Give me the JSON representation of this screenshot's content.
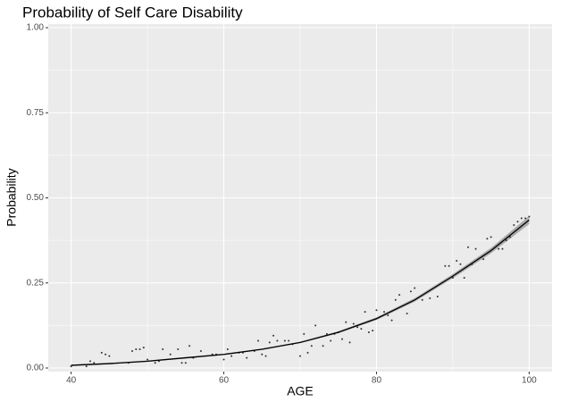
{
  "chart_data": {
    "type": "scatter",
    "title": "Probability of Self Care Disability",
    "xlabel": "AGE",
    "ylabel": "Probability",
    "xlim": [
      37,
      103
    ],
    "ylim": [
      0,
      1
    ],
    "xticks": [
      40,
      60,
      80,
      100
    ],
    "yticks": [
      {
        "value": 0,
        "label": "0.00"
      },
      {
        "value": 0.25,
        "label": "0.25"
      },
      {
        "value": 0.5,
        "label": "0.50"
      },
      {
        "value": 0.75,
        "label": "0.75"
      },
      {
        "value": 1,
        "label": "1.00"
      }
    ],
    "x_minor_grid": [
      50,
      70,
      90
    ],
    "y_minor_grid": [
      0.125,
      0.375,
      0.625,
      0.875
    ],
    "grid": true,
    "background": "#ebebeb",
    "points": {
      "color": "#333333",
      "x": [
        40,
        42,
        42.5,
        43,
        44,
        44.5,
        45,
        47.5,
        48,
        48.5,
        49,
        49.5,
        50,
        51,
        51.5,
        52,
        53,
        54,
        54.5,
        55,
        55.5,
        56,
        57,
        58.5,
        59,
        60,
        60.5,
        61,
        62,
        62.5,
        63,
        64,
        64.5,
        65,
        65.5,
        66,
        66.5,
        67,
        68,
        68.5,
        69,
        70,
        70.5,
        71,
        71.5,
        72,
        73,
        73.5,
        74,
        74.5,
        75,
        75.5,
        76,
        76.5,
        77,
        77.5,
        78,
        78.5,
        79,
        79.5,
        80,
        81,
        81.5,
        82,
        82.5,
        83,
        84,
        84.5,
        85,
        86,
        87,
        88,
        89,
        89.5,
        90,
        90.5,
        91,
        91.5,
        92,
        92.5,
        93,
        94,
        94.5,
        95,
        96,
        96.5,
        97,
        97.5,
        98,
        98.5,
        99,
        99.5,
        100
      ],
      "values": [
        0.005,
        0.005,
        0.02,
        0.015,
        0.045,
        0.04,
        0.035,
        0.015,
        0.05,
        0.055,
        0.055,
        0.06,
        0.025,
        0.015,
        0.02,
        0.055,
        0.04,
        0.055,
        0.015,
        0.015,
        0.065,
        0.03,
        0.05,
        0.04,
        0.04,
        0.025,
        0.055,
        0.035,
        0.045,
        0.045,
        0.03,
        0.05,
        0.08,
        0.04,
        0.035,
        0.075,
        0.095,
        0.08,
        0.08,
        0.08,
        0.07,
        0.035,
        0.1,
        0.045,
        0.065,
        0.125,
        0.065,
        0.1,
        0.08,
        0.1,
        0.105,
        0.085,
        0.135,
        0.075,
        0.13,
        0.12,
        0.115,
        0.165,
        0.105,
        0.11,
        0.17,
        0.165,
        0.155,
        0.14,
        0.2,
        0.215,
        0.16,
        0.225,
        0.235,
        0.2,
        0.205,
        0.21,
        0.3,
        0.3,
        0.265,
        0.315,
        0.305,
        0.265,
        0.355,
        0.305,
        0.35,
        0.32,
        0.38,
        0.385,
        0.35,
        0.35,
        0.375,
        0.385,
        0.42,
        0.43,
        0.44,
        0.44,
        0.445
      ]
    },
    "fit": {
      "color": "#000000",
      "band_color": "#7f7f7f",
      "x": [
        40,
        45,
        50,
        55,
        60,
        65,
        70,
        75,
        80,
        85,
        90,
        95,
        100
      ],
      "values": [
        0.008,
        0.013,
        0.02,
        0.03,
        0.04,
        0.055,
        0.075,
        0.105,
        0.145,
        0.2,
        0.27,
        0.345,
        0.435
      ],
      "lower": [
        0.006,
        0.011,
        0.018,
        0.028,
        0.038,
        0.053,
        0.073,
        0.102,
        0.141,
        0.195,
        0.264,
        0.337,
        0.423
      ],
      "upper": [
        0.01,
        0.015,
        0.022,
        0.032,
        0.042,
        0.057,
        0.077,
        0.108,
        0.149,
        0.205,
        0.276,
        0.353,
        0.447
      ]
    }
  }
}
